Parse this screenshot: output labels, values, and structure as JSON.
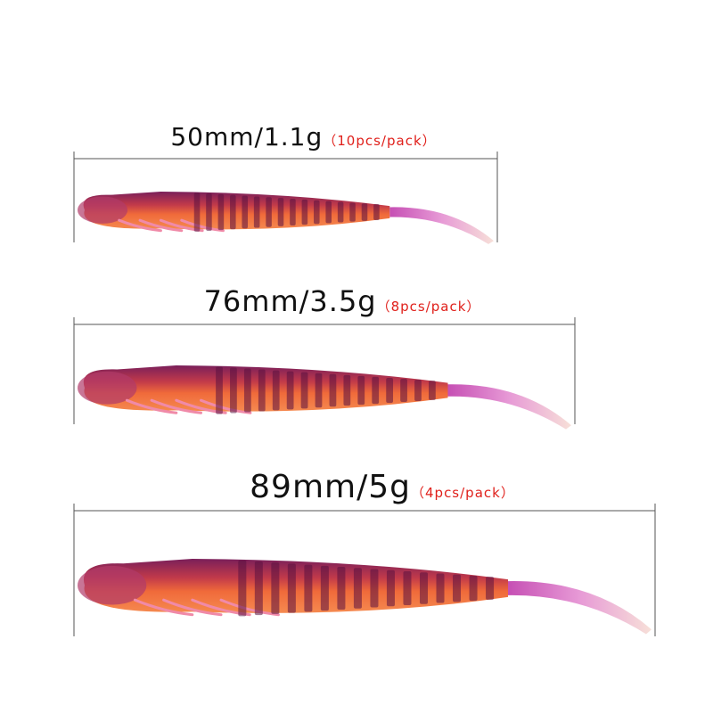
{
  "items": [
    {
      "size": "50mm/1.1g",
      "pack": "（10pcs/pack）"
    },
    {
      "size": "76mm/3.5g",
      "pack": "（8pcs/pack）"
    },
    {
      "size": "89mm/5g",
      "pack": "（4pcs/pack）"
    }
  ]
}
